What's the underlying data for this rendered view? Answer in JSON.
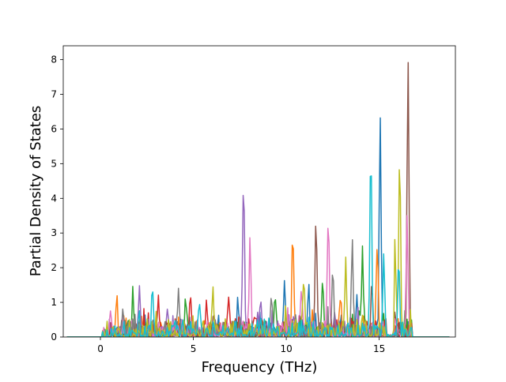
{
  "chart_data": {
    "type": "line",
    "title": "",
    "xlabel": "Frequency (THz)",
    "ylabel": "Partial Density of States",
    "xlim": [
      -2.0,
      19.1
    ],
    "ylim": [
      0,
      8.4
    ],
    "xticks": [
      0,
      5,
      10,
      15
    ],
    "yticks": [
      0,
      1,
      2,
      3,
      4,
      5,
      6,
      7,
      8
    ],
    "grid": false,
    "legend": "none",
    "x_start": -1.8,
    "x_end": 18.8,
    "series": [
      {
        "color": "#1f77b4",
        "peaks": [
          [
            15.05,
            6.2
          ],
          [
            9.9,
            1.45
          ],
          [
            11.2,
            1.25
          ],
          [
            7.4,
            0.95
          ],
          [
            13.8,
            1.1
          ]
        ]
      },
      {
        "color": "#ff7f0e",
        "peaks": [
          [
            10.35,
            2.9
          ],
          [
            14.9,
            2.7
          ],
          [
            12.9,
            1.05
          ],
          [
            2.2,
            0.6
          ],
          [
            0.85,
            0.75
          ]
        ]
      },
      {
        "color": "#2ca02c",
        "peaks": [
          [
            14.1,
            2.2
          ],
          [
            11.95,
            1.5
          ],
          [
            1.75,
            1.0
          ],
          [
            4.6,
            0.9
          ],
          [
            9.4,
            0.8
          ]
        ]
      },
      {
        "color": "#d62728",
        "peaks": [
          [
            4.85,
            1.15
          ],
          [
            6.9,
            1.1
          ],
          [
            3.1,
            0.8
          ],
          [
            5.7,
            0.75
          ],
          [
            8.3,
            0.6
          ]
        ]
      },
      {
        "color": "#9467bd",
        "peaks": [
          [
            7.7,
            4.4
          ],
          [
            2.1,
            1.1
          ],
          [
            8.6,
            0.9
          ],
          [
            3.6,
            0.7
          ],
          [
            12.6,
            0.7
          ]
        ]
      },
      {
        "color": "#8c564b",
        "peaks": [
          [
            16.55,
            8.05
          ],
          [
            11.6,
            3.4
          ],
          [
            14.6,
            1.3
          ],
          [
            6.1,
            0.6
          ],
          [
            15.8,
            0.9
          ]
        ]
      },
      {
        "color": "#e377c2",
        "peaks": [
          [
            12.25,
            3.05
          ],
          [
            8.05,
            2.65
          ],
          [
            16.5,
            3.5
          ],
          [
            0.55,
            0.75
          ],
          [
            10.8,
            1.3
          ]
        ]
      },
      {
        "color": "#7f7f7f",
        "peaks": [
          [
            13.55,
            2.8
          ],
          [
            4.2,
            1.4
          ],
          [
            9.2,
            1.2
          ],
          [
            12.5,
            1.6
          ],
          [
            1.2,
            0.4
          ]
        ]
      },
      {
        "color": "#bcbd22",
        "peaks": [
          [
            16.1,
            5.2
          ],
          [
            6.05,
            1.35
          ],
          [
            13.2,
            2.05
          ],
          [
            15.85,
            2.7
          ],
          [
            10.95,
            1.65
          ]
        ]
      },
      {
        "color": "#17becf",
        "peaks": [
          [
            14.55,
            5.5
          ],
          [
            2.8,
            1.2
          ],
          [
            15.25,
            2.3
          ],
          [
            16.05,
            2.2
          ],
          [
            5.3,
            0.7
          ]
        ]
      }
    ]
  }
}
